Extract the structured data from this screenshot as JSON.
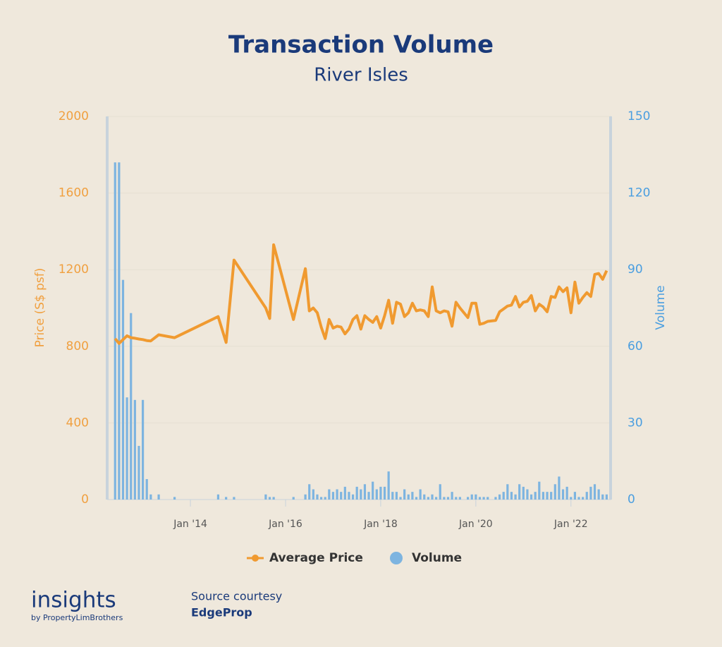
{
  "chart_data": {
    "type": "combo",
    "title": "Transaction Volume",
    "subtitle": "River Isles",
    "y_label": "Price (S$ psf)",
    "y2_label": "Volume",
    "x": [
      "2012-06",
      "2012-07",
      "2012-08",
      "2012-09",
      "2012-10",
      "2012-11",
      "2012-12",
      "2013-01",
      "2013-02",
      "2013-03",
      "2013-05",
      "2013-09",
      "2014-08",
      "2014-10",
      "2014-12",
      "2015-08",
      "2015-09",
      "2015-10",
      "2016-03",
      "2016-06",
      "2016-07",
      "2016-08",
      "2016-09",
      "2016-10",
      "2016-11",
      "2016-12",
      "2017-01",
      "2017-02",
      "2017-03",
      "2017-04",
      "2017-05",
      "2017-06",
      "2017-07",
      "2017-08",
      "2017-09",
      "2017-10",
      "2017-11",
      "2017-12",
      "2018-01",
      "2018-02",
      "2018-03",
      "2018-04",
      "2018-05",
      "2018-06",
      "2018-07",
      "2018-08",
      "2018-09",
      "2018-10",
      "2018-11",
      "2018-12",
      "2019-01",
      "2019-02",
      "2019-03",
      "2019-04",
      "2019-05",
      "2019-06",
      "2019-07",
      "2019-08",
      "2019-09",
      "2019-11",
      "2019-12",
      "2020-01",
      "2020-02",
      "2020-03",
      "2020-04",
      "2020-06",
      "2020-07",
      "2020-08",
      "2020-09",
      "2020-10",
      "2020-11",
      "2020-12",
      "2021-01",
      "2021-02",
      "2021-03",
      "2021-04",
      "2021-05",
      "2021-06",
      "2021-07",
      "2021-08",
      "2021-09",
      "2021-10",
      "2021-11",
      "2021-12",
      "2022-01",
      "2022-02",
      "2022-03",
      "2022-04",
      "2022-05",
      "2022-06",
      "2022-07",
      "2022-08",
      "2022-09",
      "2022-10"
    ],
    "series": [
      {
        "name": "Average Price",
        "type": "line",
        "axis": "y",
        "color": "#f09a30",
        "values": [
          840,
          815,
          835,
          855,
          845,
          842,
          838,
          835,
          830,
          828,
          860,
          845,
          955,
          820,
          1250,
          1000,
          945,
          1330,
          940,
          1205,
          985,
          1000,
          975,
          900,
          840,
          940,
          895,
          905,
          900,
          865,
          890,
          940,
          960,
          890,
          960,
          940,
          925,
          955,
          895,
          960,
          1040,
          920,
          1030,
          1020,
          955,
          975,
          1025,
          985,
          990,
          985,
          955,
          1110,
          985,
          975,
          985,
          980,
          905,
          1030,
          1000,
          950,
          1025,
          1025,
          915,
          920,
          930,
          935,
          980,
          995,
          1010,
          1015,
          1060,
          1005,
          1030,
          1035,
          1065,
          985,
          1020,
          1005,
          980,
          1060,
          1055,
          1110,
          1085,
          1105,
          975,
          1135,
          1025,
          1055,
          1080,
          1060,
          1175,
          1180,
          1150,
          1195
        ]
      },
      {
        "name": "Volume",
        "type": "bar",
        "axis": "y2",
        "color": "#7db4e0",
        "values": [
          132,
          132,
          86,
          40,
          73,
          39,
          21,
          39,
          8,
          2,
          2,
          1,
          2,
          1,
          1,
          2,
          1,
          1,
          1,
          2,
          6,
          4,
          2,
          1,
          1,
          4,
          3,
          4,
          3,
          5,
          3,
          2,
          5,
          4,
          6,
          3,
          7,
          4,
          5,
          5,
          11,
          3,
          3,
          1,
          4,
          2,
          3,
          1,
          4,
          2,
          1,
          2,
          1,
          6,
          1,
          1,
          3,
          1,
          1,
          1,
          2,
          2,
          1,
          1,
          1,
          1,
          2,
          3,
          6,
          3,
          2,
          6,
          5,
          4,
          2,
          3,
          7,
          3,
          3,
          3,
          6,
          9,
          4,
          5,
          1,
          3,
          1,
          1,
          3,
          5,
          6,
          4,
          2,
          2
        ]
      }
    ],
    "xlim": [
      "2012-04",
      "2022-11"
    ],
    "xticks": [
      {
        "value": "2014-01",
        "label": "Jan '14"
      },
      {
        "value": "2016-01",
        "label": "Jan '16"
      },
      {
        "value": "2018-01",
        "label": "Jan '18"
      },
      {
        "value": "2020-01",
        "label": "Jan '20"
      },
      {
        "value": "2022-01",
        "label": "Jan '22"
      }
    ],
    "ylim": [
      0,
      2000
    ],
    "yticks": [
      0,
      400,
      800,
      1200,
      1600,
      2000
    ],
    "y2lim": [
      0,
      150
    ],
    "y2ticks": [
      0,
      30,
      60,
      90,
      120,
      150
    ],
    "y_color": "#f0a040",
    "y2_color": "#4a9ee0",
    "grid": true,
    "legend": "bottom"
  },
  "footer": {
    "brand": "insights",
    "brand_sub": "by PropertyLimBrothers",
    "source_label": "Source courtesy",
    "source": "EdgeProp"
  }
}
